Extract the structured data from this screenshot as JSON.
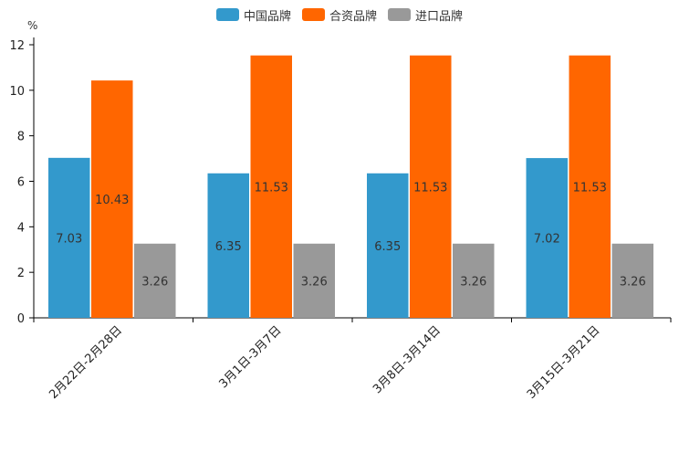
{
  "chart_data": {
    "type": "bar",
    "unit_label": "%",
    "categories": [
      "2月22日-2月28日",
      "3月1日-3月7日",
      "3月8日-3月14日",
      "3月15日-3月21日"
    ],
    "series": [
      {
        "name": "中国品牌",
        "color": "#3399cc",
        "values": [
          7.03,
          6.35,
          6.35,
          7.02
        ]
      },
      {
        "name": "合资品牌",
        "color": "#ff6600",
        "values": [
          10.43,
          11.53,
          11.53,
          11.53
        ]
      },
      {
        "name": "进口品牌",
        "color": "#999999",
        "values": [
          3.26,
          3.26,
          3.26,
          3.26
        ]
      }
    ],
    "value_labels": [
      [
        "7.03",
        "10.43",
        "3.26"
      ],
      [
        "6.35",
        "11.53",
        "3.26"
      ],
      [
        "6.35",
        "11.53",
        "3.26"
      ],
      [
        "7.02",
        "11.53",
        "3.26"
      ]
    ],
    "ylim": [
      0,
      12
    ],
    "yticks": [
      0,
      2,
      4,
      6,
      8,
      10,
      12
    ],
    "legend_position": "top-center",
    "grid": false
  }
}
